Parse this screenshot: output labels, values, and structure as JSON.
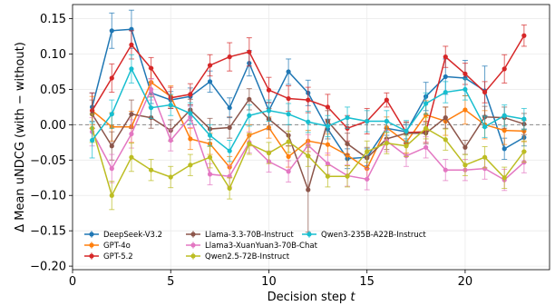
{
  "chart_data": {
    "type": "line",
    "xlabel": "Decision step",
    "xlabel_var": "t",
    "ylabel": "Δ Mean uNDCG (with − without)",
    "xlim": [
      0,
      24.3
    ],
    "ylim": [
      -0.205,
      0.17
    ],
    "xticks": [
      0,
      5,
      10,
      15,
      20
    ],
    "yticks": [
      -0.2,
      -0.15,
      -0.1,
      -0.05,
      0.0,
      0.05,
      0.1,
      0.15
    ],
    "ytick_labels": [
      "−0.20",
      "−0.15",
      "−0.10",
      "−0.05",
      "0.00",
      "0.05",
      "0.10",
      "0.15"
    ],
    "xtick_labels": [
      "0",
      "5",
      "10",
      "15",
      "20"
    ],
    "grid": true,
    "reference_line": 0,
    "legend_position": "lower-left",
    "x": [
      1,
      2,
      3,
      4,
      5,
      6,
      7,
      8,
      9,
      10,
      11,
      12,
      13,
      14,
      15,
      16,
      17,
      18,
      19,
      20,
      21,
      22,
      23
    ],
    "series": [
      {
        "name": "DeepSeek-V3.2",
        "color": "#1f77b4",
        "values": [
          0.025,
          0.133,
          0.135,
          0.045,
          0.035,
          0.04,
          0.061,
          0.024,
          0.087,
          0.02,
          0.075,
          0.045,
          -0.006,
          -0.048,
          -0.046,
          -0.005,
          -0.01,
          0.04,
          0.068,
          0.066,
          0.048,
          -0.034,
          -0.018
        ],
        "err": [
          0.02,
          0.025,
          0.027,
          0.015,
          0.012,
          0.012,
          0.015,
          0.014,
          0.018,
          0.012,
          0.018,
          0.018,
          0.014,
          0.014,
          0.012,
          0.01,
          0.01,
          0.02,
          0.025,
          0.025,
          0.035,
          0.015,
          0.012
        ]
      },
      {
        "name": "GPT-4o",
        "color": "#ff7f0e",
        "values": [
          0.02,
          -0.003,
          -0.003,
          0.06,
          0.04,
          -0.02,
          -0.027,
          -0.06,
          -0.015,
          -0.004,
          -0.045,
          -0.023,
          -0.028,
          -0.043,
          -0.062,
          -0.004,
          -0.025,
          0.014,
          0.005,
          0.021,
          0.0,
          -0.008,
          -0.009
        ],
        "err": [
          0.02,
          0.02,
          0.022,
          0.02,
          0.015,
          0.015,
          0.015,
          0.015,
          0.015,
          0.015,
          0.015,
          0.015,
          0.015,
          0.015,
          0.015,
          0.015,
          0.015,
          0.02,
          0.02,
          0.02,
          0.02,
          0.02,
          0.015
        ]
      },
      {
        "name": "GPT-5.2",
        "color": "#d62728",
        "values": [
          0.02,
          0.066,
          0.113,
          0.08,
          0.038,
          0.043,
          0.084,
          0.096,
          0.103,
          0.049,
          0.037,
          0.035,
          0.025,
          -0.005,
          0.005,
          0.035,
          -0.011,
          -0.01,
          0.096,
          0.072,
          0.046,
          0.079,
          0.126
        ],
        "err": [
          0.025,
          0.02,
          0.02,
          0.015,
          0.015,
          0.015,
          0.015,
          0.02,
          0.02,
          0.018,
          0.018,
          0.018,
          0.018,
          0.018,
          0.018,
          0.01,
          0.015,
          0.015,
          0.015,
          0.015,
          0.015,
          0.02,
          0.015
        ]
      },
      {
        "name": "Llama-3.3-70B-Instruct",
        "color": "#8c564b",
        "values": [
          0.015,
          -0.03,
          0.015,
          0.01,
          -0.008,
          0.021,
          -0.006,
          -0.004,
          0.036,
          0.008,
          -0.015,
          -0.092,
          0.005,
          -0.027,
          -0.047,
          -0.02,
          -0.012,
          -0.012,
          0.01,
          -0.032,
          0.011,
          0.01,
          0.001
        ],
        "err": [
          0.02,
          0.02,
          0.02,
          0.015,
          0.015,
          0.015,
          0.015,
          0.015,
          0.015,
          0.015,
          0.015,
          0.06,
          0.015,
          0.015,
          0.015,
          0.015,
          0.015,
          0.015,
          0.015,
          0.01,
          0.015,
          0.015,
          0.015
        ]
      },
      {
        "name": "Llama3-XuanYuan3-70B-Chat",
        "color": "#e377c2",
        "values": [
          -0.01,
          -0.062,
          -0.013,
          0.05,
          -0.022,
          0.011,
          -0.07,
          -0.073,
          -0.025,
          -0.052,
          -0.066,
          -0.029,
          -0.055,
          -0.072,
          -0.077,
          -0.023,
          -0.044,
          -0.032,
          -0.064,
          -0.064,
          -0.062,
          -0.078,
          -0.053
        ],
        "err": [
          0.02,
          0.02,
          0.02,
          0.015,
          0.015,
          0.015,
          0.015,
          0.015,
          0.015,
          0.015,
          0.015,
          0.015,
          0.015,
          0.015,
          0.015,
          0.015,
          0.015,
          0.015,
          0.015,
          0.015,
          0.015,
          0.015,
          0.015
        ]
      },
      {
        "name": "Qwen2.5-72B-Instruct",
        "color": "#bcbd22",
        "values": [
          -0.005,
          -0.1,
          -0.046,
          -0.064,
          -0.074,
          -0.057,
          -0.046,
          -0.09,
          -0.027,
          -0.04,
          -0.024,
          -0.044,
          -0.073,
          -0.073,
          -0.038,
          -0.026,
          -0.03,
          -0.005,
          -0.021,
          -0.057,
          -0.046,
          -0.075,
          -0.038
        ],
        "err": [
          0.02,
          0.02,
          0.02,
          0.015,
          0.015,
          0.015,
          0.015,
          0.015,
          0.015,
          0.015,
          0.015,
          0.015,
          0.015,
          0.015,
          0.015,
          0.015,
          0.015,
          0.015,
          0.015,
          0.015,
          0.015,
          0.015,
          0.015
        ]
      },
      {
        "name": "Qwen3-235B-A22B-Instruct",
        "color": "#17becf",
        "values": [
          -0.022,
          0.015,
          0.079,
          0.024,
          0.028,
          0.016,
          -0.015,
          -0.037,
          0.013,
          0.02,
          0.015,
          0.004,
          -0.002,
          0.01,
          0.005,
          0.005,
          -0.009,
          0.03,
          0.046,
          0.05,
          -0.003,
          0.013,
          0.008
        ],
        "err": [
          0.025,
          0.02,
          0.02,
          0.015,
          0.015,
          0.015,
          0.015,
          0.015,
          0.015,
          0.015,
          0.015,
          0.015,
          0.015,
          0.015,
          0.015,
          0.015,
          0.015,
          0.015,
          0.015,
          0.015,
          0.015,
          0.015,
          0.015
        ]
      }
    ]
  }
}
